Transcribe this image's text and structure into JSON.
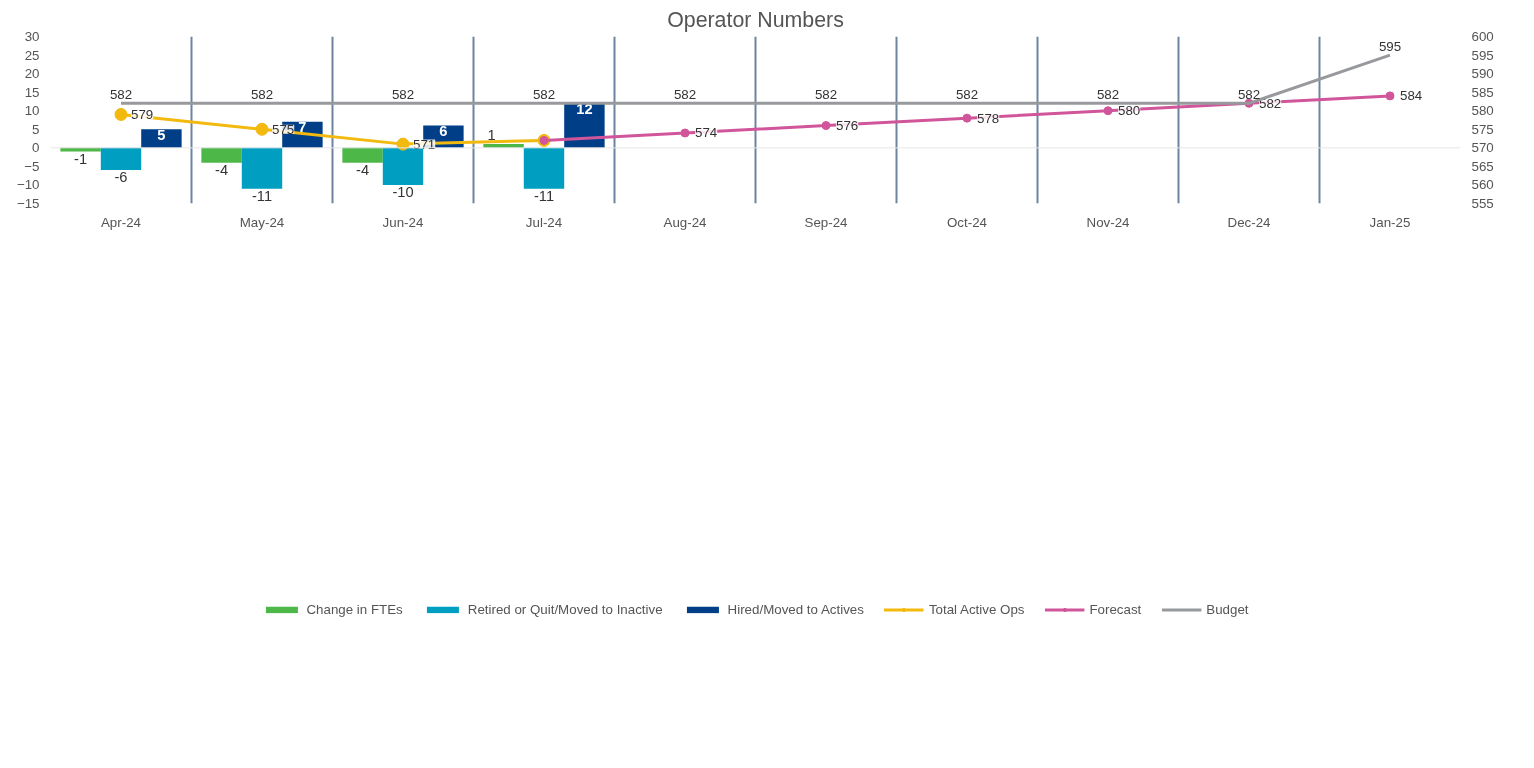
{
  "chart_data": {
    "type": "bar",
    "title": "Operator Numbers",
    "categories": [
      "Apr-24",
      "May-24",
      "Jun-24",
      "Jul-24",
      "Aug-24",
      "Sep-24",
      "Oct-24",
      "Nov-24",
      "Dec-24",
      "Jan-25"
    ],
    "series": [
      {
        "name": "Change in FTEs",
        "color": "#4db748",
        "values": [
          -1,
          -4,
          -4,
          1,
          null,
          null,
          null,
          null,
          null,
          null
        ]
      },
      {
        "name": "Retired or Quit/Moved to Inactive",
        "color": "#009fc2",
        "values": [
          -6,
          -11,
          -10,
          -11,
          null,
          null,
          null,
          null,
          null,
          null
        ]
      },
      {
        "name": "Hired/Moved to Actives",
        "color": "#003f87",
        "values": [
          5,
          7,
          6,
          12,
          null,
          null,
          null,
          null,
          null,
          null
        ]
      },
      {
        "name": "Total Active Ops",
        "type": "line",
        "axis": "y2",
        "marker": "circle",
        "color": "#f2b90f",
        "values": [
          579,
          575,
          571,
          572,
          null,
          null,
          null,
          null,
          null,
          null
        ],
        "value_labels": [
          "579",
          "575",
          "571",
          null,
          null,
          null,
          null,
          null,
          null,
          null
        ]
      },
      {
        "name": "Forecast",
        "type": "line",
        "axis": "y2",
        "marker": "circle",
        "color": "#d1559a",
        "values": [
          null,
          null,
          null,
          572,
          574,
          576,
          578,
          580,
          582,
          584
        ],
        "value_labels": [
          null,
          null,
          null,
          null,
          "574",
          "576",
          "578",
          "580",
          "582",
          "584"
        ]
      },
      {
        "name": "Budget",
        "type": "line",
        "axis": "y2",
        "marker": "none",
        "color": "#97999c",
        "values": [
          582,
          582,
          582,
          582,
          582,
          582,
          582,
          582,
          582,
          595
        ]
      }
    ],
    "ylim": [
      -15,
      30
    ],
    "yticks": [
      -15,
      -10,
      -5,
      0,
      5,
      10,
      15,
      20,
      25,
      30
    ],
    "y2lim": [
      555,
      600
    ],
    "y2ticks": [
      555,
      560,
      565,
      570,
      575,
      580,
      585,
      590,
      595,
      600
    ],
    "grid": "x",
    "legend": "bottom",
    "data_labels": true
  }
}
